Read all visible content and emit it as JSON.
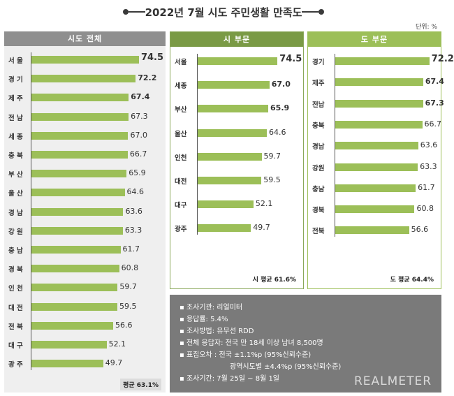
{
  "title": "2022년 7월 시도 주민생활 만족도",
  "unit": "단위: %",
  "colors": {
    "bar": "#9cbf58",
    "panel_all": "#8f8f8f",
    "panel_city": "#7a9a45",
    "panel_prov": "#9cbf58",
    "bg_all": "#efefef"
  },
  "chart_data": [
    {
      "type": "bar",
      "title": "시도 전체",
      "categories": [
        "서 울",
        "경 기",
        "제 주",
        "전 남",
        "세 종",
        "충 북",
        "부 산",
        "울 산",
        "경 남",
        "강 원",
        "충 남",
        "경 북",
        "인 천",
        "대 전",
        "전 북",
        "대 구",
        "광 주"
      ],
      "values": [
        74.5,
        72.2,
        67.4,
        67.3,
        67.0,
        66.7,
        65.9,
        64.6,
        63.6,
        63.3,
        61.7,
        60.8,
        59.7,
        59.5,
        56.6,
        52.1,
        49.7
      ],
      "labels": [
        "74.5",
        "72.2",
        "67.4",
        "67.3",
        "67.0",
        "66.7",
        "65.9",
        "64.6",
        "63.6",
        "63.3",
        "61.7",
        "60.8",
        "59.7",
        "59.5",
        "56.6",
        "52.1",
        "49.7"
      ],
      "average_label": "평균 63.1%"
    },
    {
      "type": "bar",
      "title": "시 부문",
      "categories": [
        "서울",
        "세종",
        "부산",
        "울산",
        "인천",
        "대전",
        "대구",
        "광주"
      ],
      "values": [
        74.5,
        67.0,
        65.9,
        64.6,
        59.7,
        59.5,
        52.1,
        49.7
      ],
      "labels": [
        "74.5",
        "67.0",
        "65.9",
        "64.6",
        "59.7",
        "59.5",
        "52.1",
        "49.7"
      ],
      "average_label": "시 평균 61.6%"
    },
    {
      "type": "bar",
      "title": "도 부문",
      "categories": [
        "경기",
        "제주",
        "전남",
        "충북",
        "경남",
        "강원",
        "충남",
        "경북",
        "전북"
      ],
      "values": [
        72.2,
        67.4,
        67.3,
        66.7,
        63.6,
        63.3,
        61.7,
        60.8,
        56.6
      ],
      "labels": [
        "72.2",
        "67.4",
        "67.3",
        "66.7",
        "63.6",
        "63.3",
        "61.7",
        "60.8",
        "56.6"
      ],
      "average_label": "도 평균 64.4%"
    }
  ],
  "info": [
    "▪ 조사기관: 리얼미터",
    "▪ 응답률: 5.4%",
    "▪ 조사방법: 유무선 RDD",
    "▪ 전체 응답자: 전국 만 18세 이상 남녀 8,500명",
    "▪ 표집오차 : 전국 ±1.1%p (95%신뢰수준)",
    "광역시도별 ±4.4%p (95%신뢰수준)",
    "▪ 조사기간: 7월 25일 ~ 8월 1일"
  ],
  "brand": "REALMETER"
}
